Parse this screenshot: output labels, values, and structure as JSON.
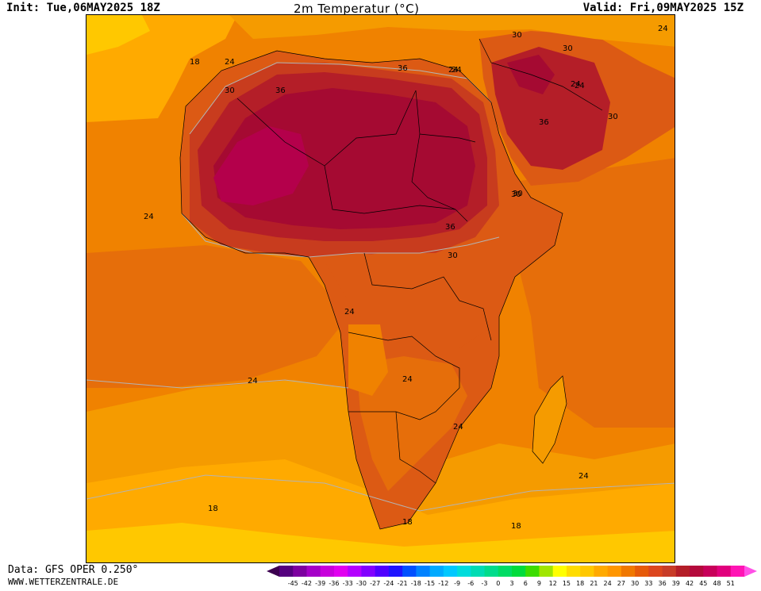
{
  "header": {
    "init": "Init: Tue,06MAY2025 18Z",
    "title": "2m Temperatur (°C)",
    "valid": "Valid: Fri,09MAY2025 15Z"
  },
  "footer": {
    "source": "Data: GFS OPER 0.250°",
    "site": "WWW.WETTERZENTRALE.DE"
  },
  "legend": {
    "ticks": [
      "-45",
      "-42",
      "-39",
      "-36",
      "-33",
      "-30",
      "-27",
      "-24",
      "-21",
      "-18",
      "-15",
      "-12",
      "-9",
      "-6",
      "-3",
      "0",
      "3",
      "6",
      "9",
      "12",
      "15",
      "18",
      "21",
      "24",
      "27",
      "30",
      "33",
      "36",
      "39",
      "42",
      "45",
      "48",
      "51"
    ],
    "colors": [
      "#55007f",
      "#7d00a0",
      "#a500c8",
      "#c800dc",
      "#e100f0",
      "#b400ff",
      "#8200ff",
      "#5000ff",
      "#1e14ff",
      "#0050ff",
      "#0082ff",
      "#00aaff",
      "#00c8ff",
      "#00dcdc",
      "#00dcb4",
      "#00dc8c",
      "#00dc64",
      "#00dc3c",
      "#3cdc00",
      "#a0e600",
      "#ffff00",
      "#ffdc00",
      "#ffc800",
      "#ffaa00",
      "#ff9600",
      "#f07800",
      "#e65a0a",
      "#dc461e",
      "#c83c28",
      "#b41e28",
      "#b40a3c",
      "#c8005a",
      "#e1007d",
      "#ff14b4"
    ],
    "arrow_left_color": "#3c0050",
    "arrow_right_color": "#ff50e6"
  },
  "map": {
    "colors": {
      "t15": "#ffc800",
      "t18": "#ffaa00",
      "t21": "#f59b00",
      "t24": "#f08200",
      "t27": "#e66e0a",
      "t30": "#dc5a14",
      "t33": "#c83c1e",
      "t36": "#b41e28",
      "t39": "#a50a32",
      "t42": "#b4004b",
      "border": "#000000",
      "contour": "#b4b4b4"
    },
    "contour_labels": [
      "18",
      "24",
      "30",
      "36",
      "24",
      "30",
      "36",
      "24",
      "30",
      "24",
      "30",
      "30",
      "24",
      "24",
      "24",
      "24",
      "18",
      "18",
      "24",
      "36",
      "30",
      "24",
      "36",
      "30",
      "24",
      "24",
      "18"
    ]
  }
}
